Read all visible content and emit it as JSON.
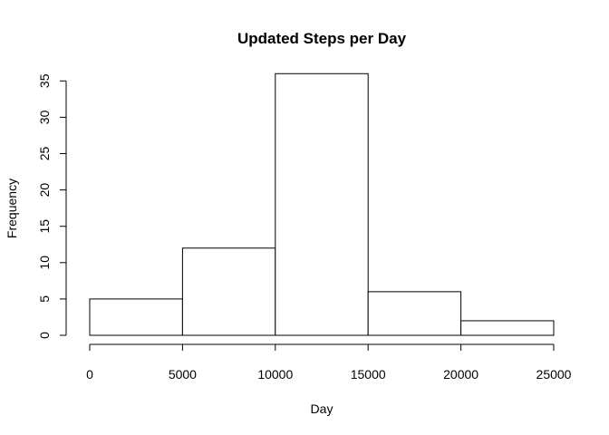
{
  "chart_data": {
    "type": "bar",
    "title": "Updated Steps per Day",
    "xlabel": "Day",
    "ylabel": "Frequency",
    "bins": [
      {
        "from": 0,
        "to": 5000,
        "count": 5
      },
      {
        "from": 5000,
        "to": 10000,
        "count": 12
      },
      {
        "from": 10000,
        "to": 15000,
        "count": 36
      },
      {
        "from": 15000,
        "to": 20000,
        "count": 6
      },
      {
        "from": 20000,
        "to": 25000,
        "count": 2
      }
    ],
    "xlim": [
      0,
      25000
    ],
    "ylim": [
      0,
      35
    ],
    "xticks": [
      0,
      5000,
      10000,
      15000,
      20000,
      25000
    ],
    "yticks": [
      0,
      5,
      10,
      15,
      20,
      25,
      30,
      35
    ],
    "grid": false,
    "colors": {
      "bar_fill": "#ffffff",
      "bar_stroke": "#000000"
    }
  }
}
